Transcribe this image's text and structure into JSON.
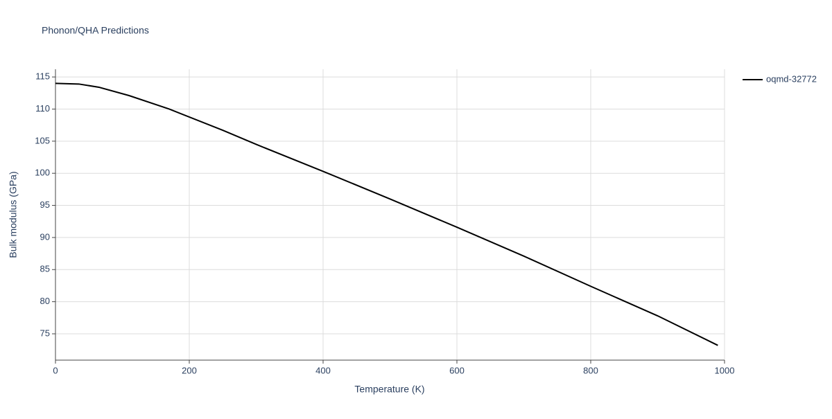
{
  "chart_data": {
    "type": "line",
    "title": "Phonon/QHA Predictions",
    "x_label": "Temperature (K)",
    "y_label": "Bulk modulus (GPa)",
    "series": [
      {
        "name": "oqmd-32772",
        "color": "#000000",
        "x": [
          0,
          35,
          65,
          110,
          170,
          250,
          300,
          400,
          500,
          600,
          700,
          800,
          900,
          990
        ],
        "values": [
          114.0,
          113.9,
          113.4,
          112.1,
          110.0,
          106.7,
          104.5,
          100.3,
          96.0,
          91.6,
          87.1,
          82.4,
          77.8,
          73.2
        ]
      }
    ],
    "xlim": [
      0,
      1000
    ],
    "xticks": [
      0,
      200,
      400,
      600,
      800,
      1000
    ],
    "ylim": [
      70.9,
      116.2
    ],
    "yticks": [
      75,
      80,
      85,
      90,
      95,
      100,
      105,
      110,
      115
    ],
    "grid": true,
    "legend": "right"
  }
}
